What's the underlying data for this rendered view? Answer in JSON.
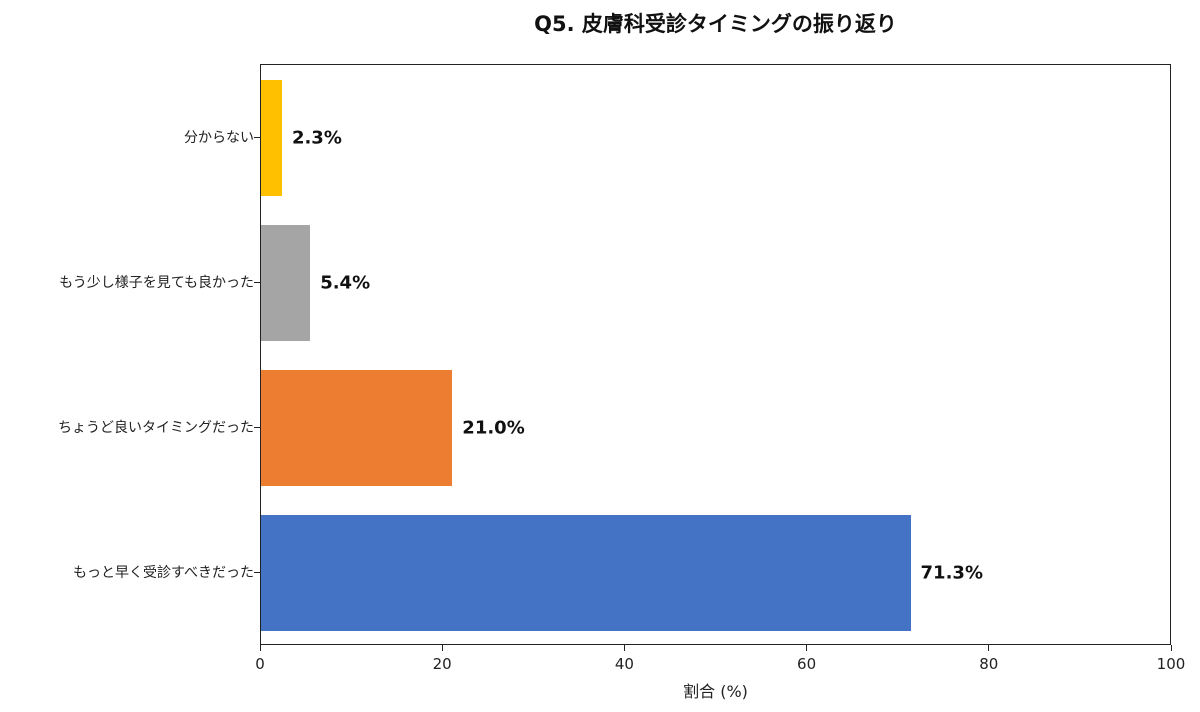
{
  "chart_data": {
    "type": "bar",
    "orientation": "horizontal",
    "title": "Q5. 皮膚科受診タイミングの振り返り",
    "xlabel": "割合 (%)",
    "ylabel": "",
    "xlim": [
      0,
      100
    ],
    "xticks": [
      "0",
      "20",
      "40",
      "60",
      "80",
      "100"
    ],
    "grid": false,
    "categories": [
      "分からない",
      "もう少し様子を見ても良かった",
      "ちょうど良いタイミングだった",
      "もっと早く受診すべきだった"
    ],
    "values": [
      2.3,
      5.4,
      21.0,
      71.3
    ],
    "value_labels": [
      "2.3%",
      "5.4%",
      "21.0%",
      "71.3%"
    ],
    "colors": [
      "#FFC000",
      "#A5A5A5",
      "#ED7D31",
      "#4472C4"
    ]
  }
}
